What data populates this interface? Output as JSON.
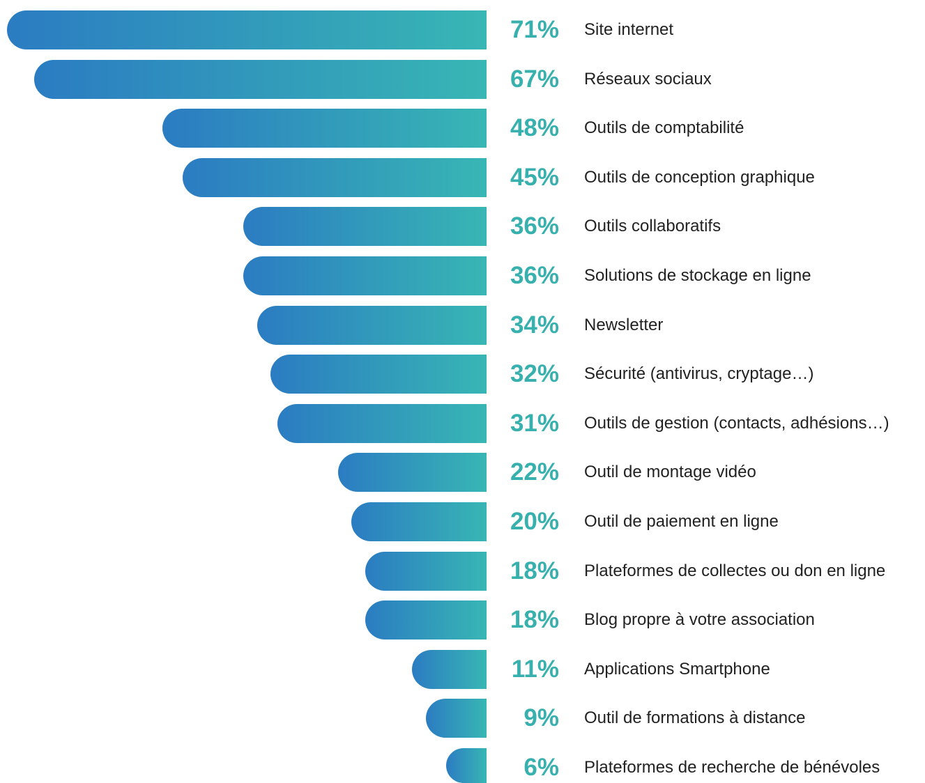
{
  "chart_data": {
    "type": "bar",
    "orientation": "horizontal",
    "grid": false,
    "categories": [
      "Site internet",
      "Réseaux sociaux",
      "Outils de comptabilité",
      "Outils de conception graphique",
      "Outils collaboratifs",
      "Solutions de stockage en ligne",
      "Newsletter",
      "Sécurité (antivirus, cryptage…)",
      "Outils de gestion (contacts, adhésions…)",
      "Outil de montage vidéo",
      "Outil de paiement en ligne",
      "Plateformes de collectes ou don en ligne",
      "Blog propre à votre association",
      "Applications Smartphone",
      "Outil de formations à distance",
      "Plateformes de recherche de bénévoles"
    ],
    "values": [
      71,
      67,
      48,
      45,
      36,
      36,
      34,
      32,
      31,
      22,
      20,
      18,
      18,
      11,
      9,
      6
    ],
    "value_labels": [
      "71%",
      "67%",
      "48%",
      "45%",
      "36%",
      "36%",
      "34%",
      "32%",
      "31%",
      "22%",
      "20%",
      "18%",
      "18%",
      "11%",
      "9%",
      "6%"
    ]
  },
  "colors": {
    "bar_gradient_start": "#2b7cc2",
    "bar_gradient_end": "#38b6b4",
    "value_label": "#38b0ad",
    "category_label": "#222222"
  }
}
